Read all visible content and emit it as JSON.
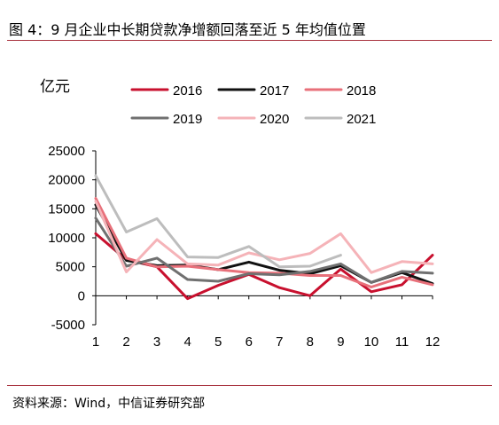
{
  "title": "图 4：9 月企业中长期贷款净增额回落至近 5 年均值位置",
  "source": "资料来源：Wind，中信证券研究部",
  "colors": {
    "rule": "#a8323e"
  },
  "chart_data": {
    "type": "line",
    "ylabel": "亿元",
    "categories": [
      "1",
      "2",
      "3",
      "4",
      "5",
      "6",
      "7",
      "8",
      "9",
      "10",
      "11",
      "12"
    ],
    "ylim": [
      -5000,
      25000
    ],
    "yticks": [
      -5000,
      0,
      5000,
      10000,
      15000,
      20000,
      25000
    ],
    "ytick_labels": [
      "-5000",
      "0",
      "5000",
      "10000",
      "15000",
      "20000",
      "25000"
    ],
    "legend_position": "top",
    "series": [
      {
        "name": "2016",
        "color": "#c8102e",
        "values": [
          10700,
          6200,
          5000,
          -500,
          1800,
          3700,
          1400,
          0,
          4600,
          700,
          1900,
          7000
        ]
      },
      {
        "name": "2017",
        "color": "#111111",
        "values": [
          15700,
          6100,
          5200,
          5300,
          4500,
          5800,
          4400,
          3800,
          5200,
          2300,
          4000,
          2100
        ]
      },
      {
        "name": "2018",
        "color": "#e8707a",
        "values": [
          16800,
          6500,
          5000,
          5100,
          4500,
          4000,
          3900,
          3500,
          3500,
          1500,
          3200,
          1900
        ]
      },
      {
        "name": "2019",
        "color": "#707070",
        "values": [
          13400,
          5100,
          6500,
          2800,
          2500,
          3800,
          3600,
          4200,
          5500,
          2300,
          4200,
          3900
        ]
      },
      {
        "name": "2020",
        "color": "#f5b3b8",
        "values": [
          16300,
          4100,
          9700,
          5500,
          5300,
          7400,
          6200,
          7300,
          10700,
          4000,
          5900,
          5500
        ]
      },
      {
        "name": "2021",
        "color": "#bdbdbd",
        "values": [
          20700,
          11000,
          13300,
          6700,
          6600,
          8500,
          5000,
          5100,
          7000,
          null,
          null,
          null
        ]
      }
    ]
  }
}
